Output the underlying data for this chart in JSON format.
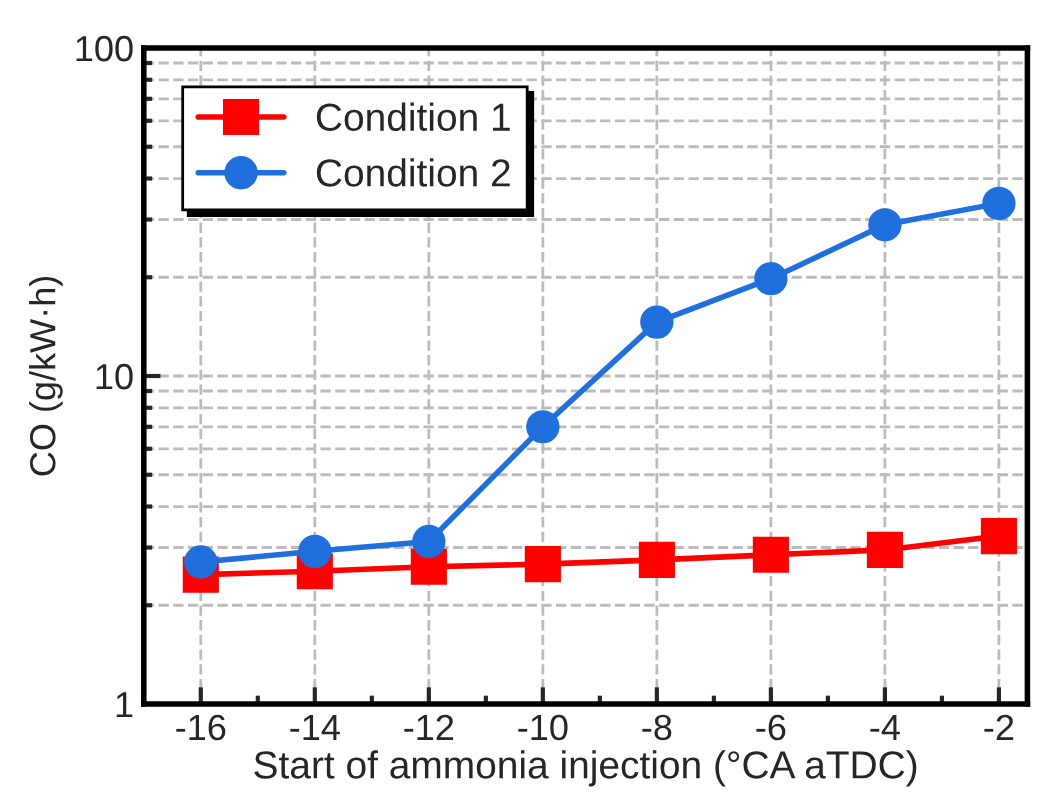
{
  "chart_data": {
    "type": "line",
    "xlabel": "Start of ammonia injection (°CA aTDC)",
    "ylabel": "CO (g/kW·h)",
    "x": [
      -16,
      -14,
      -12,
      -10,
      -8,
      -6,
      -4,
      -2
    ],
    "series": [
      {
        "name": "Condition 1",
        "color": "#ff0000",
        "marker": "square",
        "values": [
          2.48,
          2.54,
          2.62,
          2.67,
          2.75,
          2.85,
          2.95,
          3.25
        ]
      },
      {
        "name": "Condition 2",
        "color": "#1f6fdc",
        "marker": "circle",
        "values": [
          2.71,
          2.92,
          3.13,
          7.0,
          14.6,
          19.8,
          28.9,
          33.6
        ]
      }
    ],
    "log": "y",
    "xlim": [
      -17,
      -1.5
    ],
    "ylim": [
      1,
      100
    ],
    "xticks": [
      -16,
      -14,
      -12,
      -10,
      -8,
      -6,
      -4,
      -2
    ],
    "yticks": [
      1,
      10,
      100
    ],
    "grid": true,
    "legend": "top left",
    "line_style": "solid"
  }
}
